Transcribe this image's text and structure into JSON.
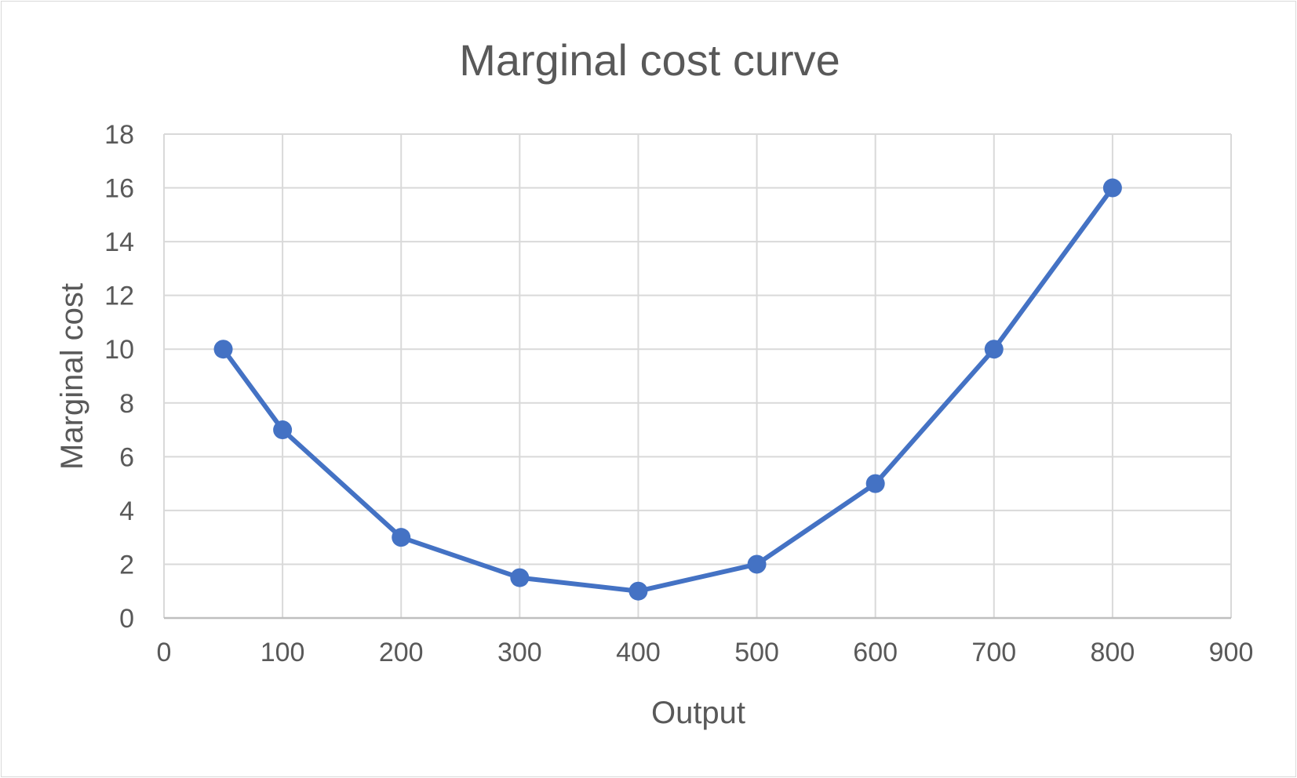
{
  "chart_data": {
    "type": "scatter",
    "mode": "lines+markers",
    "title": "Marginal cost curve",
    "xlabel": "Output",
    "ylabel": "Marginal cost",
    "xlim": [
      0,
      900
    ],
    "ylim": [
      0,
      18
    ],
    "x_ticks": [
      0,
      100,
      200,
      300,
      400,
      500,
      600,
      700,
      800,
      900
    ],
    "y_ticks": [
      0,
      2,
      4,
      6,
      8,
      10,
      12,
      14,
      16,
      18
    ],
    "grid": true,
    "legend": "none",
    "series": [
      {
        "x": [
          50,
          100,
          200,
          300,
          400,
          500,
          600,
          700,
          800
        ],
        "y": [
          10,
          7,
          3,
          1.5,
          1,
          2,
          5,
          10,
          16
        ],
        "color": "#4472c4"
      }
    ]
  }
}
